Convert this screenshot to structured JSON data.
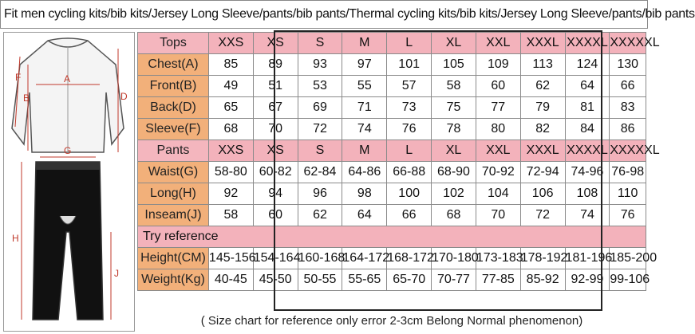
{
  "title": "Fit men cycling kits/bib kits/Jersey Long Sleeve/pants/bib pants/Thermal cycling kits/bib kits/Jersey Long Sleeve/pants/bib pants",
  "figure": {
    "labels": {
      "A": "A",
      "B": "B",
      "D": "D",
      "F": "F",
      "G": "G",
      "H": "H",
      "J": "J"
    },
    "icons": [
      "jersey-illustration-icon",
      "pants-illustration-icon"
    ]
  },
  "tops": {
    "header_label": "Tops",
    "sizes": [
      "XXS",
      "XS",
      "S",
      "M",
      "L",
      "XL",
      "XXL",
      "XXXL",
      "XXXXL",
      "XXXXXL"
    ],
    "rows": [
      {
        "label": "Chest(A)",
        "values": [
          "85",
          "89",
          "93",
          "97",
          "101",
          "105",
          "109",
          "113",
          "124",
          "130"
        ]
      },
      {
        "label": "Front(B)",
        "values": [
          "49",
          "51",
          "53",
          "55",
          "57",
          "58",
          "60",
          "62",
          "64",
          "66"
        ]
      },
      {
        "label": "Back(D)",
        "values": [
          "65",
          "67",
          "69",
          "71",
          "73",
          "75",
          "77",
          "79",
          "81",
          "83"
        ]
      },
      {
        "label": "Sleeve(F)",
        "values": [
          "68",
          "70",
          "72",
          "74",
          "76",
          "78",
          "80",
          "82",
          "84",
          "86"
        ]
      }
    ]
  },
  "pants": {
    "header_label": "Pants",
    "sizes": [
      "XXS",
      "XS",
      "S",
      "M",
      "L",
      "XL",
      "XXL",
      "XXXL",
      "XXXXL",
      "XXXXXL"
    ],
    "rows": [
      {
        "label": "Waist(G)",
        "values": [
          "58-80",
          "60-82",
          "62-84",
          "64-86",
          "66-88",
          "68-90",
          "70-92",
          "72-94",
          "74-96",
          "76-98"
        ]
      },
      {
        "label": "Long(H)",
        "values": [
          "92",
          "94",
          "96",
          "98",
          "100",
          "102",
          "104",
          "106",
          "108",
          "110"
        ]
      },
      {
        "label": "Inseam(J)",
        "values": [
          "58",
          "60",
          "62",
          "64",
          "66",
          "68",
          "70",
          "72",
          "74",
          "76"
        ]
      }
    ]
  },
  "reference": {
    "header_label": "Try reference",
    "rows": [
      {
        "label": "Height(CM)",
        "values": [
          "145-156",
          "154-164",
          "160-168",
          "164-172",
          "168-172",
          "170-180",
          "173-183",
          "178-192",
          "181-196",
          "185-200"
        ]
      },
      {
        "label": "Weight(Kg)",
        "values": [
          "40-45",
          "45-50",
          "50-55",
          "55-65",
          "65-70",
          "70-77",
          "77-85",
          "85-92",
          "92-99",
          "99-106"
        ]
      }
    ]
  },
  "footnote": "( Size chart for reference only  error 2-3cm  Belong Normal phenomenon)",
  "colors": {
    "peach": "#f2b07a",
    "pink": "#f4b6be",
    "dimension_red": "#c0392b"
  }
}
